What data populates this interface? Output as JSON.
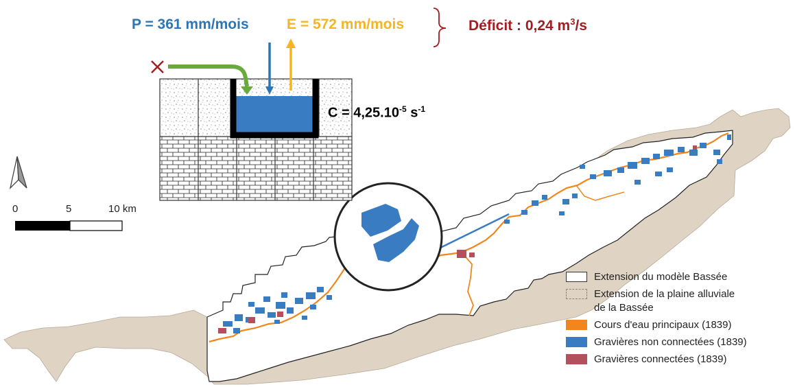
{
  "equations": {
    "precip": "P  = 361 mm/mois",
    "evap": "E = 572 mm/mois",
    "deficit_prefix": "Déficit : 0,24 m",
    "deficit_exp": "3",
    "deficit_suffix": "/s",
    "conductance_prefix": "C = 4,25.10",
    "conductance_exp1": "-5",
    "conductance_unit": " s",
    "conductance_exp2": "-1"
  },
  "scalebar": {
    "ticks": [
      "0",
      "5",
      "10 km"
    ]
  },
  "legend": {
    "items": [
      {
        "label": "Extension du modèle Bassée",
        "color": "#ffffff",
        "border": "#333333"
      },
      {
        "label": "Extension de la plaine alluviale de la Bassée",
        "color": "#dfd3c4",
        "border": "#999999",
        "dashed": true
      },
      {
        "label": "Cours d'eau principaux (1839)",
        "color": "#f2861d",
        "border": "#f2861d"
      },
      {
        "label": "Gravières non connectées (1839)",
        "color": "#3a7cc1",
        "border": "#3a7cc1"
      },
      {
        "label": "Gravières connectées (1839)",
        "color": "#b2505e",
        "border": "#b2505e"
      }
    ]
  },
  "colors": {
    "precip": "#2e75b6",
    "evap": "#f4b522",
    "deficit": "#a01e23",
    "inflow_arrow": "#6aaa3d",
    "cross": "#a01e23",
    "water": "#3a7cc1",
    "plain": "#dfd3c4",
    "river": "#f2861d",
    "gravel_nc": "#3a7cc1",
    "gravel_c": "#b2505e"
  },
  "icons": {
    "north": "north-arrow-icon",
    "blocked_inflow": "cross-icon"
  }
}
